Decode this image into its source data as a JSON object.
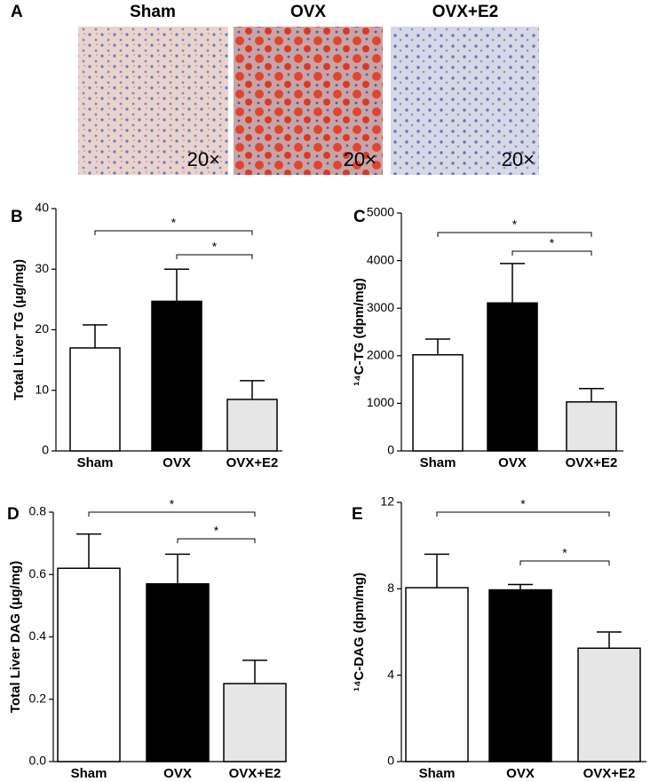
{
  "panel_a": {
    "label": "A",
    "titles": [
      "Sham",
      "OVX",
      "OVX+E2"
    ],
    "magnification": "20×"
  },
  "chart_data": [
    {
      "type": "bar",
      "label": "B",
      "ylabel": "Total Liver TG (μg/mg)",
      "categories": [
        "Sham",
        "OVX",
        "OVX+E2"
      ],
      "values": [
        17,
        24.7,
        8.5
      ],
      "errors": [
        3.8,
        5.3,
        3.1
      ],
      "colors": [
        "#ffffff",
        "#000000",
        "#e6e6e6"
      ],
      "ylim": [
        0,
        40
      ],
      "yticks": [
        0,
        10,
        20,
        30,
        40
      ],
      "annotations": [
        {
          "text": "*",
          "from": 0,
          "to": 2
        },
        {
          "text": "*",
          "from": 1,
          "to": 2
        }
      ]
    },
    {
      "type": "bar",
      "label": "C",
      "ylabel": "¹⁴C-TG (dpm/mg)",
      "categories": [
        "Sham",
        "OVX",
        "OVX+E2"
      ],
      "values": [
        2020,
        3110,
        1030
      ],
      "errors": [
        330,
        830,
        280
      ],
      "colors": [
        "#ffffff",
        "#000000",
        "#e6e6e6"
      ],
      "ylim": [
        0,
        5000
      ],
      "yticks": [
        0,
        1000,
        2000,
        3000,
        4000,
        5000
      ],
      "annotations": [
        {
          "text": "*",
          "from": 0,
          "to": 2
        },
        {
          "text": "*",
          "from": 1,
          "to": 2
        }
      ]
    },
    {
      "type": "bar",
      "label": "D",
      "ylabel": "Total Liver DAG (μg/mg)",
      "categories": [
        "Sham",
        "OVX",
        "OVX+E2"
      ],
      "values": [
        0.62,
        0.57,
        0.25
      ],
      "errors": [
        0.11,
        0.095,
        0.075
      ],
      "colors": [
        "#ffffff",
        "#000000",
        "#e6e6e6"
      ],
      "ylim": [
        0,
        0.8
      ],
      "yticks": [
        {
          "value": 0,
          "label": "0.0"
        },
        0.2,
        0.4,
        0.6,
        0.8
      ],
      "annotations": [
        {
          "text": "*",
          "from": 0,
          "to": 2
        },
        {
          "text": "*",
          "from": 1,
          "to": 2
        }
      ]
    },
    {
      "type": "bar",
      "label": "E",
      "ylabel": "¹⁴C-DAG (dpm/mg)",
      "categories": [
        "Sham",
        "OVX",
        "OVX+E2"
      ],
      "values": [
        8.05,
        7.95,
        5.25
      ],
      "errors": [
        1.55,
        0.25,
        0.75
      ],
      "colors": [
        "#ffffff",
        "#000000",
        "#e6e6e6"
      ],
      "ylim": [
        0,
        12
      ],
      "yticks": [
        0,
        4,
        8,
        12
      ],
      "annotations": [
        {
          "text": "*",
          "from": 0,
          "to": 2
        },
        {
          "text": "*",
          "from": 1,
          "to": 2
        }
      ]
    }
  ]
}
